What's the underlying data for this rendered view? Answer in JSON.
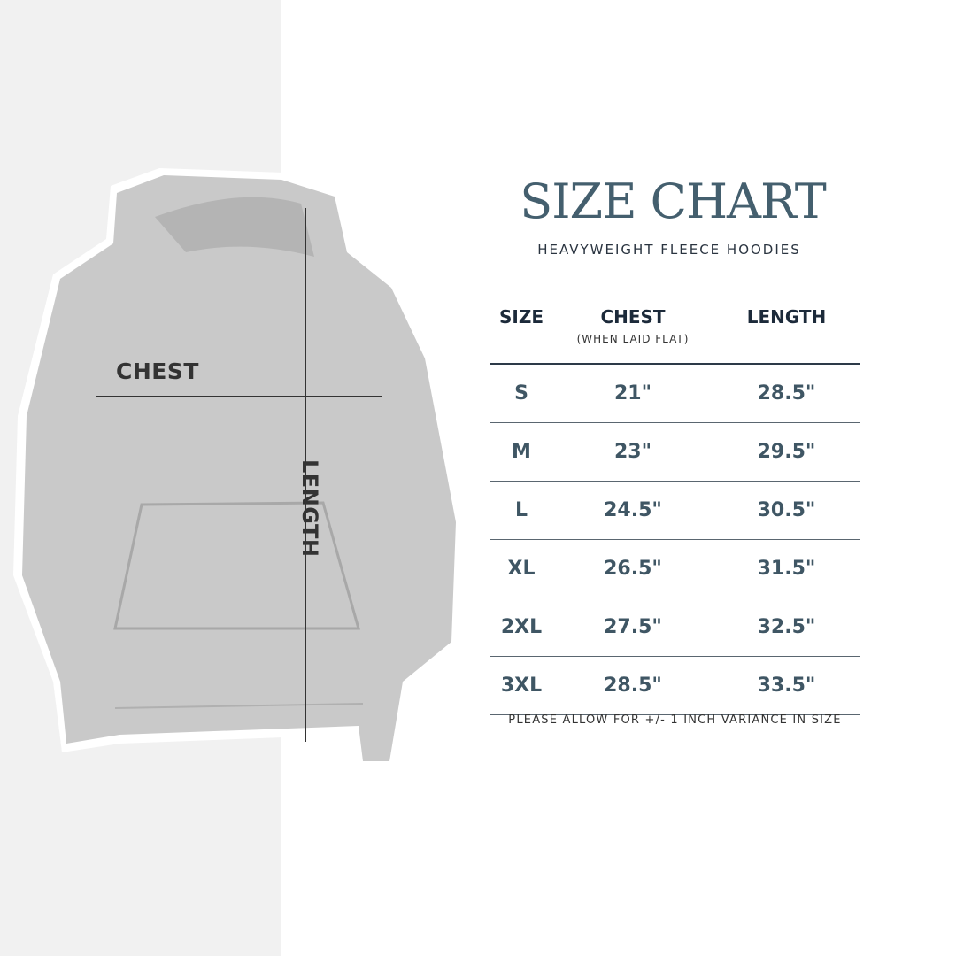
{
  "title": "SIZE CHART",
  "subtitle": "HEAVYWEIGHT FLEECE HOODIES",
  "image_labels": {
    "chest": "CHEST",
    "length": "LENGTH"
  },
  "table": {
    "headers": {
      "size": "SIZE",
      "chest": "CHEST",
      "chest_note": "(WHEN LAID FLAT)",
      "length": "LENGTH"
    },
    "rows": [
      {
        "size": "S",
        "chest": "21\"",
        "length": "28.5\""
      },
      {
        "size": "M",
        "chest": "23\"",
        "length": "29.5\""
      },
      {
        "size": "L",
        "chest": "24.5\"",
        "length": "30.5\""
      },
      {
        "size": "XL",
        "chest": "26.5\"",
        "length": "31.5\""
      },
      {
        "size": "2XL",
        "chest": "27.5\"",
        "length": "32.5\""
      },
      {
        "size": "3XL",
        "chest": "28.5\"",
        "length": "33.5\""
      }
    ]
  },
  "footer": "PLEASE ALLOW FOR +/- 1 INCH VARIANCE IN SIZE",
  "colors": {
    "title": "#445f6e",
    "header": "#1c2a3a",
    "values": "#3f5664",
    "hoodie": "#c9c9c9"
  }
}
